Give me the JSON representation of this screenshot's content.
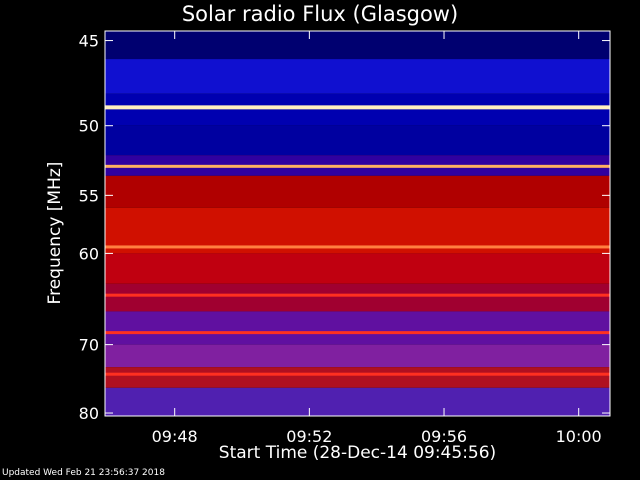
{
  "chart_data": {
    "type": "heatmap",
    "title": "Solar radio Flux (Glasgow)",
    "xlabel": "Start Time (28-Dec-14 09:45:56)",
    "ylabel": "Frequency [MHz]",
    "x_ticks": [
      "09:48",
      "09:52",
      "09:56",
      "10:00"
    ],
    "x_tick_minutes": [
      2.07,
      6.07,
      10.07,
      14.07
    ],
    "x_range_minutes": [
      0,
      15
    ],
    "y_ticks": [
      45,
      50,
      55,
      60,
      70,
      80
    ],
    "y_range": [
      44.5,
      80.5
    ],
    "y_scale": "reciprocal",
    "colormap": [
      "#000020",
      "#0000a0",
      "#3030ff",
      "#8020a0",
      "#c00000",
      "#ff3000",
      "#ff9020",
      "#ffe080",
      "#ffffff"
    ],
    "bright_lines_mhz": [
      48.8,
      52.8,
      59.4,
      64.2,
      68.5,
      74.0
    ],
    "grid": false
  },
  "footer": "Updated Wed Feb 21 23:56:37 2018"
}
